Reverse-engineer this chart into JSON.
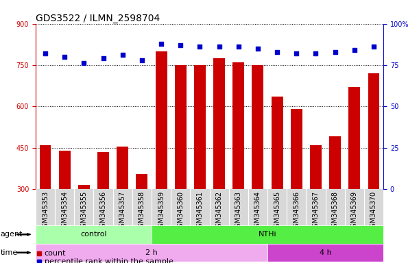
{
  "title": "GDS3522 / ILMN_2598704",
  "samples": [
    "GSM345353",
    "GSM345354",
    "GSM345355",
    "GSM345356",
    "GSM345357",
    "GSM345358",
    "GSM345359",
    "GSM345360",
    "GSM345361",
    "GSM345362",
    "GSM345363",
    "GSM345364",
    "GSM345365",
    "GSM345366",
    "GSM345367",
    "GSM345368",
    "GSM345369",
    "GSM345370"
  ],
  "counts_all": [
    460,
    440,
    315,
    435,
    455,
    355,
    800,
    750,
    750,
    775,
    760,
    750,
    635,
    590,
    460,
    490,
    670,
    720
  ],
  "percentile_ranks": [
    82,
    80,
    76,
    79,
    81,
    78,
    88,
    87,
    86,
    86,
    86,
    85,
    83,
    82,
    82,
    83,
    84,
    86
  ],
  "ylim_left": [
    300,
    900
  ],
  "yticks_left": [
    300,
    450,
    600,
    750,
    900
  ],
  "ylim_right": [
    0,
    100
  ],
  "yticks_right": [
    0,
    25,
    50,
    75,
    100
  ],
  "bar_color": "#cc0000",
  "dot_color": "#0000cc",
  "plot_bg_color": "#ffffff",
  "tick_area_color": "#d8d8d8",
  "agent_light_green": "#aaffaa",
  "agent_dark_green": "#55ee44",
  "time_light_pink": "#f0aaee",
  "time_dark_pink": "#cc44cc",
  "agent_groups": [
    {
      "label": "control",
      "start": 0,
      "end": 6,
      "color_key": "agent_light_green"
    },
    {
      "label": "NTHi",
      "start": 6,
      "end": 18,
      "color_key": "agent_dark_green"
    }
  ],
  "time_groups": [
    {
      "label": "2 h",
      "start": 0,
      "end": 12,
      "color_key": "time_light_pink"
    },
    {
      "label": "4 h",
      "start": 12,
      "end": 18,
      "color_key": "time_dark_pink"
    }
  ],
  "background_color": "#ffffff",
  "grid_color": "#000000",
  "title_fontsize": 10,
  "tick_fontsize": 7,
  "row_label_fontsize": 8,
  "legend_fontsize": 8
}
